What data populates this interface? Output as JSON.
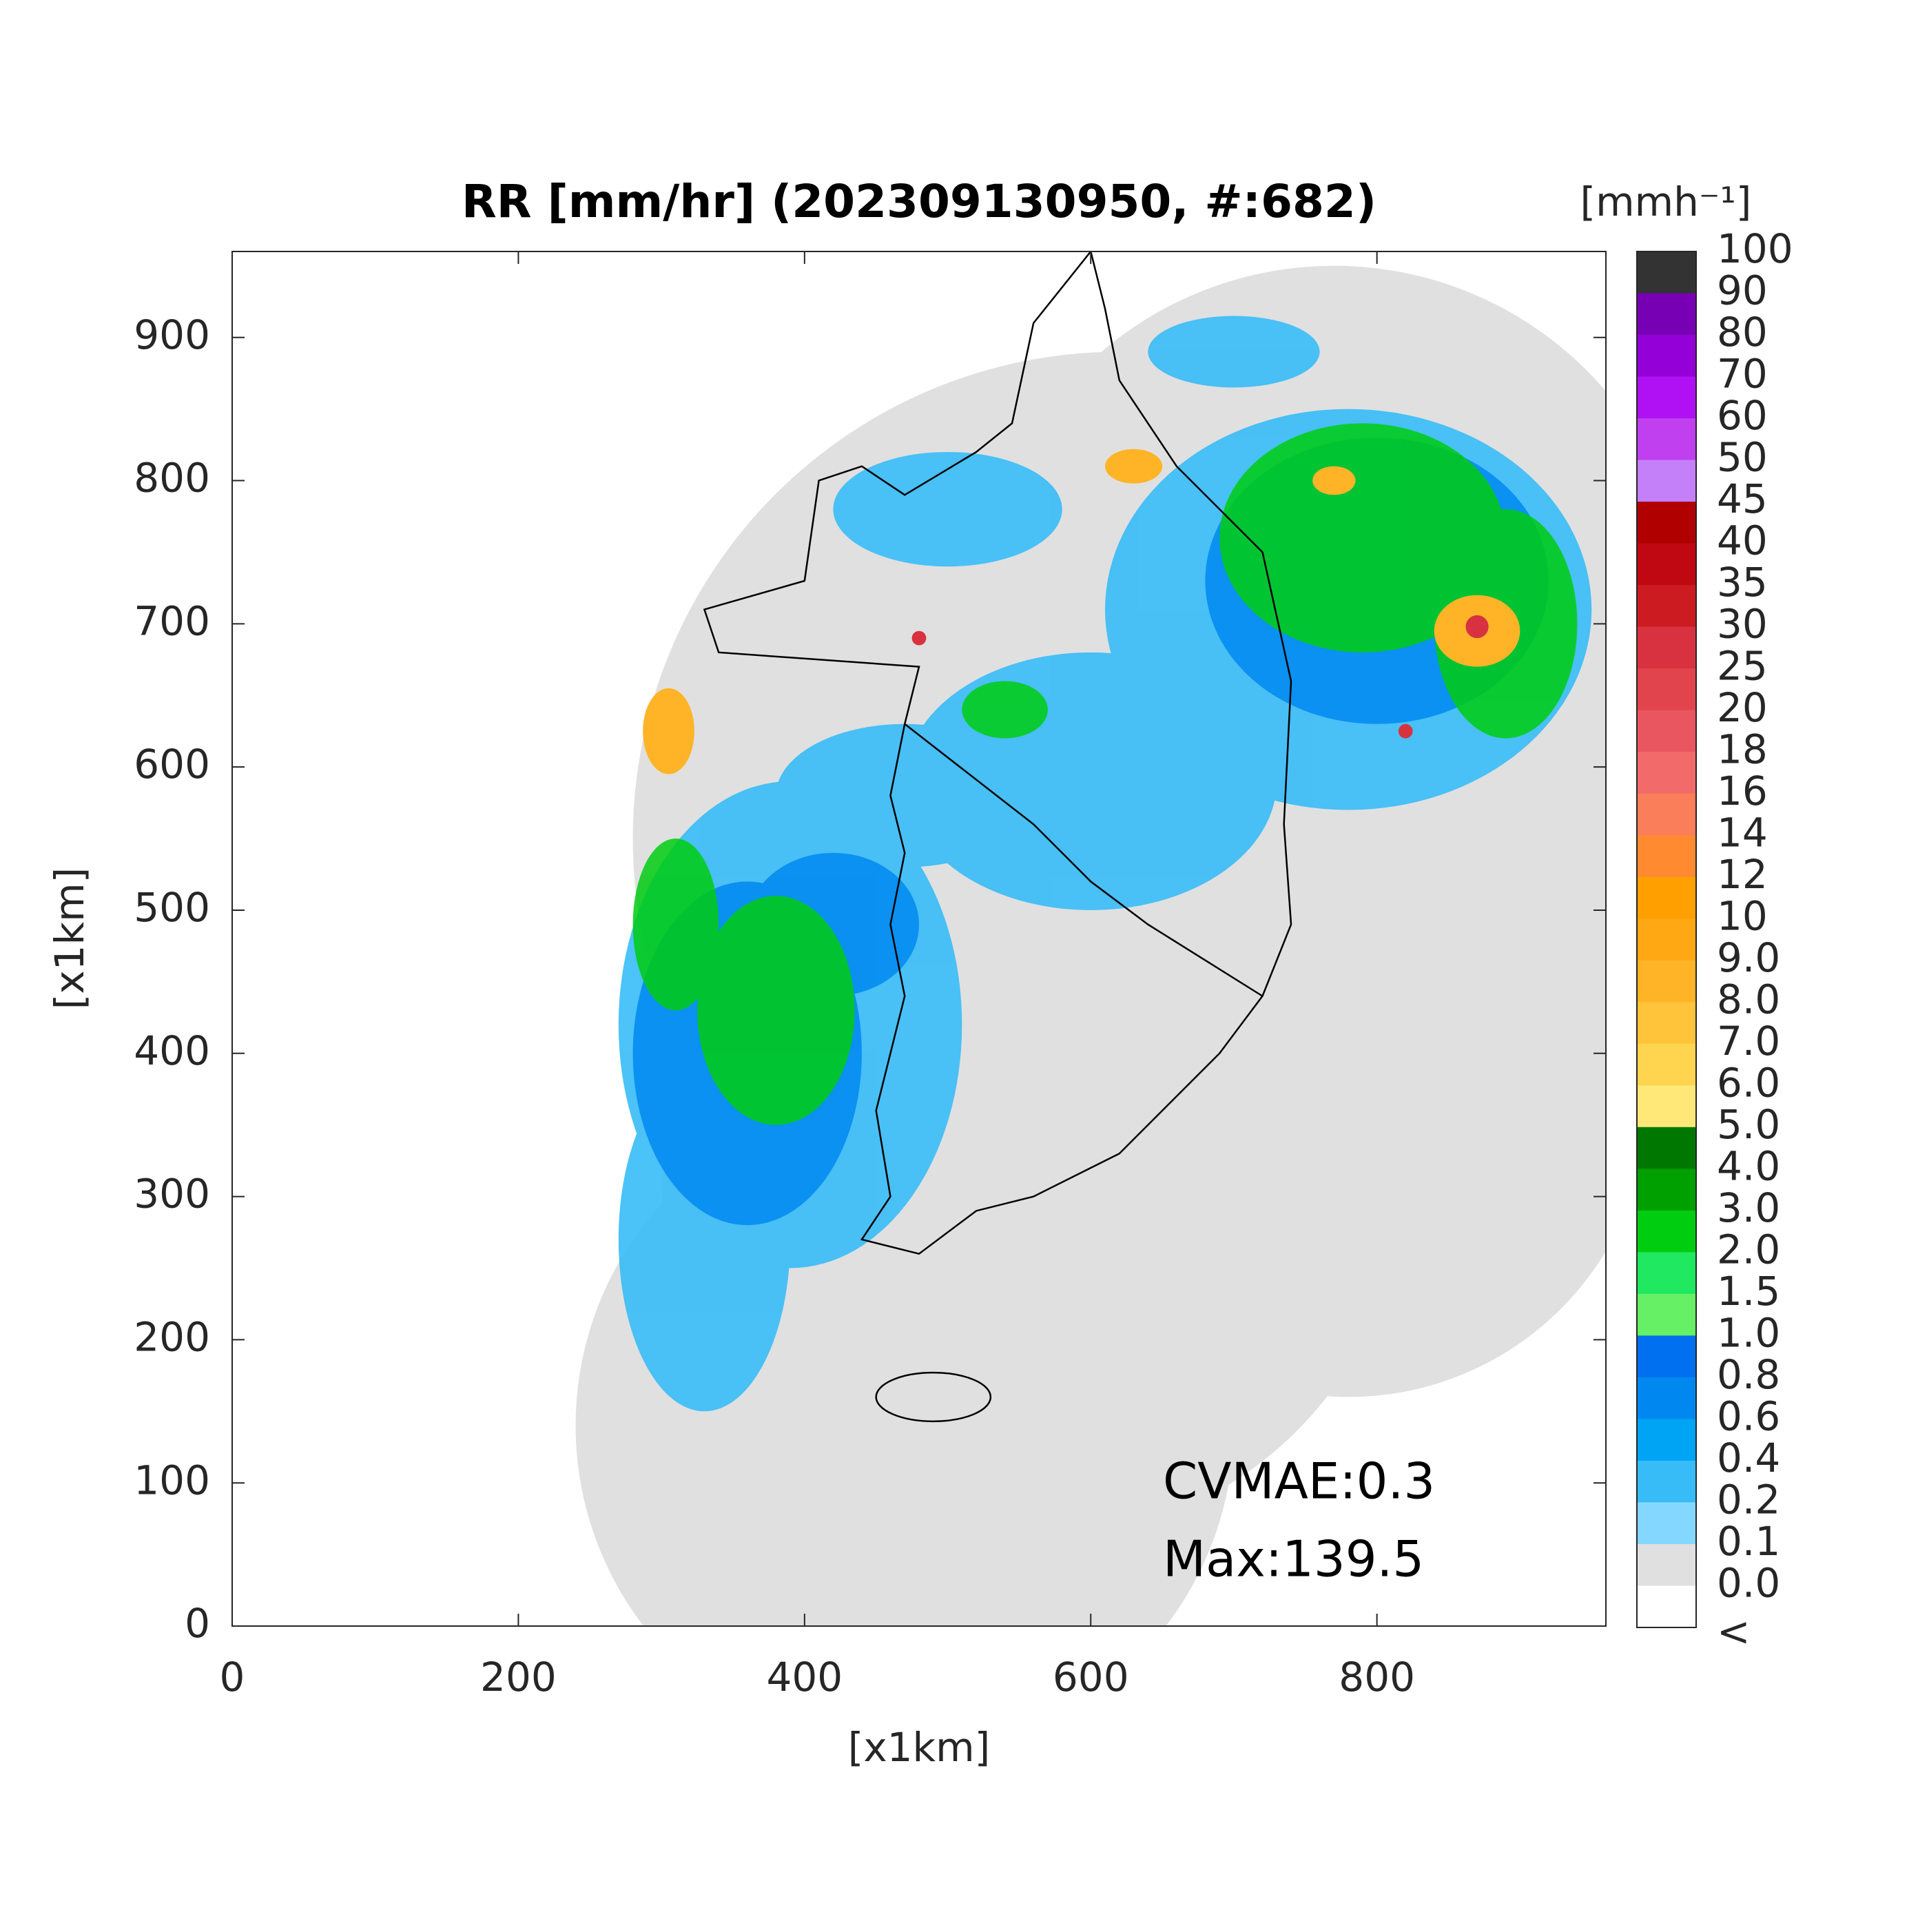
{
  "chart_data": {
    "type": "radar-map",
    "title": "RR [mm/hr] (202309130950, #:682)",
    "x_label": "[x1km]",
    "y_label": "[x1km]",
    "xlim": [
      0,
      960
    ],
    "ylim": [
      0,
      960
    ],
    "xticks": [
      0,
      200,
      400,
      600,
      800
    ],
    "yticks": [
      0,
      100,
      200,
      300,
      400,
      500,
      600,
      700,
      800,
      900
    ],
    "annotations": [
      "CVMAE:0.3",
      "Max:139.5"
    ],
    "colorbar": {
      "title": "[mmh⁻¹]",
      "labels": [
        "100",
        "90",
        "80",
        "70",
        "60",
        "50",
        "45",
        "40",
        "35",
        "30",
        "25",
        "20",
        "18",
        "16",
        "14",
        "12",
        "10",
        "9.0",
        "8.0",
        "7.0",
        "6.0",
        "5.0",
        "4.0",
        "3.0",
        "2.0",
        "1.5",
        "1.0",
        "0.8",
        "0.6",
        "0.4",
        "0.2",
        "0.1",
        "0.0",
        "<"
      ],
      "colors": [
        "#333333",
        "#7800b4",
        "#9400d8",
        "#b010f4",
        "#c040f0",
        "#c480f8",
        "#b00000",
        "#c00812",
        "#cc1c22",
        "#d83240",
        "#e2444e",
        "#ea5660",
        "#f26a6a",
        "#fa7e5a",
        "#ff8a30",
        "#ffa000",
        "#ffa814",
        "#ffb428",
        "#ffc43a",
        "#ffd44e",
        "#ffe878",
        "#007800",
        "#00a000",
        "#00cc10",
        "#20e860",
        "#66f066",
        "#0070f0",
        "#0088f0",
        "#00a4f4",
        "#38bcf8",
        "#84d8ff",
        "#e0e0e0",
        "#ffffff"
      ]
    }
  }
}
